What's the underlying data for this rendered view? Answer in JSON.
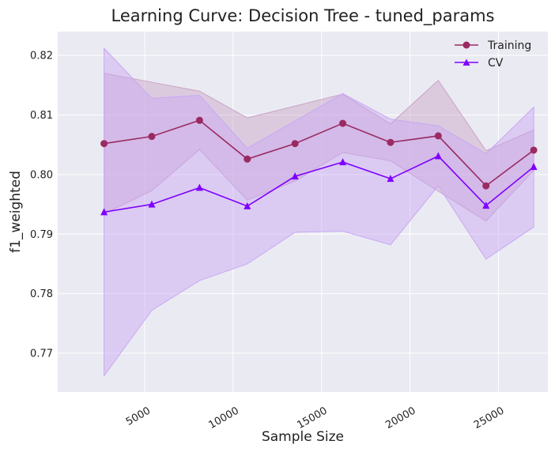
{
  "chart_data": {
    "type": "line",
    "title": "Learning Curve: Decision Tree - tuned_params",
    "xlabel": "Sample Size",
    "ylabel": "f1_weighted",
    "xlim": [
      80,
      27800
    ],
    "ylim": [
      0.7635,
      0.824
    ],
    "grid": true,
    "legend_position": "top-right",
    "x": [
      2700,
      5400,
      8100,
      10800,
      13500,
      16200,
      18900,
      21600,
      24300,
      27000
    ],
    "x_ticks": [
      {
        "value": 5000,
        "label": "5000"
      },
      {
        "value": 10000,
        "label": "10000"
      },
      {
        "value": 15000,
        "label": "15000"
      },
      {
        "value": 20000,
        "label": "20000"
      },
      {
        "value": 25000,
        "label": "25000"
      }
    ],
    "y_ticks": [
      {
        "value": 0.77,
        "label": "0.77"
      },
      {
        "value": 0.78,
        "label": "0.78"
      },
      {
        "value": 0.79,
        "label": "0.79"
      },
      {
        "value": 0.8,
        "label": "0.80"
      },
      {
        "value": 0.81,
        "label": "0.81"
      },
      {
        "value": 0.82,
        "label": "0.82"
      }
    ],
    "series": [
      {
        "name": "Training",
        "color": "#9b2a62",
        "marker": "circle",
        "values": [
          0.8052,
          0.8064,
          0.8091,
          0.8026,
          0.8052,
          0.8086,
          0.8054,
          0.8065,
          0.7981,
          0.8041
        ],
        "band_upper": [
          0.817,
          0.8155,
          0.814,
          0.8095,
          0.8115,
          0.8135,
          0.8085,
          0.8158,
          0.804,
          0.8075
        ],
        "band_lower": [
          0.7934,
          0.7973,
          0.8042,
          0.7957,
          0.7989,
          0.8037,
          0.8023,
          0.7972,
          0.7922,
          0.8007
        ],
        "band_color": "#c9a3c6"
      },
      {
        "name": "CV",
        "color": "#7f00ff",
        "marker": "triangle",
        "values": [
          0.7937,
          0.795,
          0.7978,
          0.7947,
          0.7997,
          0.8021,
          0.7993,
          0.8031,
          0.7948,
          0.8013
        ],
        "band_upper": [
          0.8212,
          0.8128,
          0.8133,
          0.8044,
          0.809,
          0.8136,
          0.8093,
          0.8082,
          0.8035,
          0.8113
        ],
        "band_lower": [
          0.7662,
          0.7772,
          0.7822,
          0.785,
          0.7903,
          0.7905,
          0.7882,
          0.7981,
          0.7858,
          0.7912
        ],
        "band_color": "#c9a7f4"
      }
    ]
  },
  "colors": {
    "plot_background": "#eaeaf2",
    "grid": "#ffffff",
    "text": "#222222"
  }
}
